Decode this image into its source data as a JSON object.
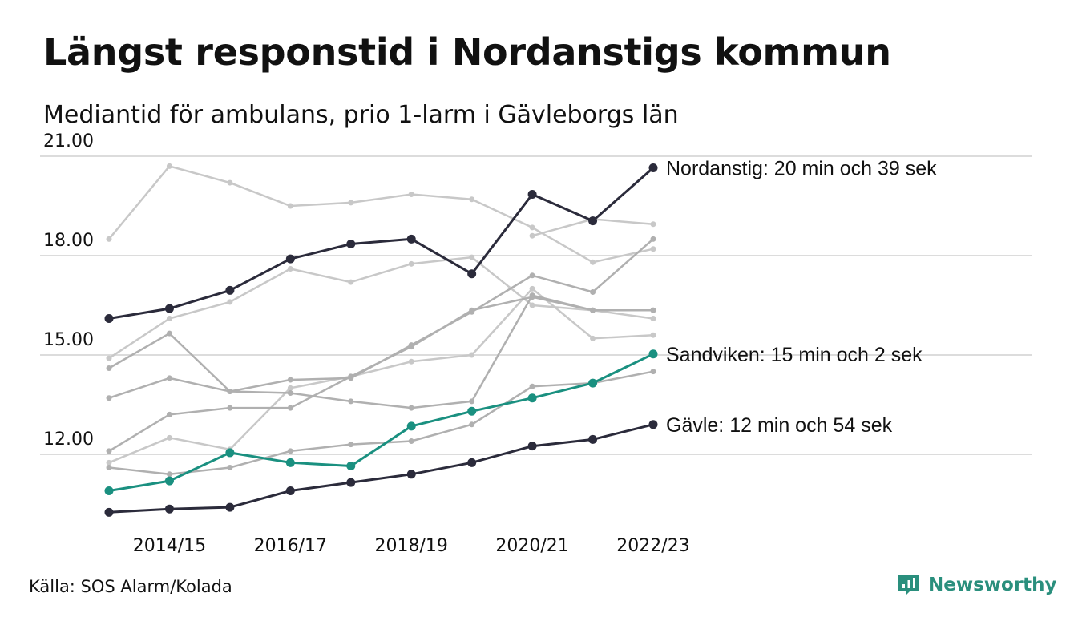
{
  "title": "Längst responstid i Nordanstigs kommun",
  "subtitle": "Mediantid för ambulans, prio 1-larm i Gävleborgs län",
  "source": "Källa: SOS Alarm/Kolada",
  "brand": {
    "name": "Newsworthy",
    "icon": "newsworthy-logo-icon",
    "color": "#2a8f7d"
  },
  "colors": {
    "highlight": "#2b2b3b",
    "accent": "#1a9080",
    "grey_light": "#c8c8c8",
    "grey_mid": "#b0b0b0",
    "grid": "#dcdcdc"
  },
  "chart_data": {
    "type": "line",
    "x": [
      "2013/14",
      "2014/15",
      "2015/16",
      "2016/17",
      "2017/18",
      "2018/19",
      "2019/20",
      "2020/21",
      "2021/22",
      "2022/23"
    ],
    "x_tick_labels": [
      "2014/15",
      "2016/17",
      "2018/19",
      "2020/21",
      "2022/23"
    ],
    "y_ticks": [
      12,
      15,
      18,
      21
    ],
    "y_tick_labels": [
      "12.00",
      "15.00",
      "18.00",
      "21.00"
    ],
    "ylim": [
      10.3,
      21.5
    ],
    "grid": "horizontal",
    "series": [
      {
        "style": "grey_light",
        "values": [
          18.5,
          20.7,
          20.2,
          19.5,
          19.6,
          19.85,
          19.7,
          18.85,
          17.8,
          18.2
        ]
      },
      {
        "style": "grey_light",
        "values": [
          null,
          null,
          null,
          null,
          null,
          null,
          null,
          18.6,
          19.1,
          18.95
        ]
      },
      {
        "style": "grey_light",
        "values": [
          14.9,
          16.1,
          16.6,
          17.6,
          17.2,
          17.75,
          17.95,
          16.5,
          16.35,
          16.1
        ]
      },
      {
        "style": "grey_light",
        "values": [
          11.75,
          12.5,
          12.15,
          14.0,
          14.35,
          14.8,
          15.0,
          17.0,
          15.5,
          15.6
        ]
      },
      {
        "style": "grey_mid",
        "values": [
          14.6,
          15.65,
          13.9,
          13.85,
          13.6,
          13.4,
          13.6,
          16.8,
          16.35,
          16.35
        ]
      },
      {
        "style": "grey_mid",
        "values": [
          13.7,
          14.3,
          13.9,
          14.25,
          14.3,
          15.3,
          16.3,
          17.4,
          16.9,
          18.5
        ]
      },
      {
        "style": "grey_mid",
        "values": [
          12.1,
          13.2,
          13.4,
          13.4,
          14.35,
          15.25,
          16.35,
          16.75,
          16.35,
          16.35
        ]
      },
      {
        "style": "grey_mid",
        "values": [
          11.6,
          11.4,
          11.6,
          12.1,
          12.3,
          12.4,
          12.9,
          14.05,
          14.15,
          14.5
        ]
      },
      {
        "name": "Sandviken",
        "style": "accent",
        "values": [
          10.9,
          11.2,
          12.05,
          11.75,
          11.65,
          12.85,
          13.3,
          13.7,
          14.15,
          15.03
        ]
      },
      {
        "name": "Nordanstig",
        "style": "highlight",
        "values": [
          16.1,
          16.4,
          16.95,
          17.9,
          18.35,
          18.5,
          17.45,
          19.85,
          19.05,
          20.65
        ]
      },
      {
        "name": "Gävle",
        "style": "highlight",
        "values": [
          10.25,
          10.35,
          10.4,
          10.9,
          11.15,
          11.4,
          11.75,
          12.25,
          12.45,
          12.9
        ]
      }
    ],
    "annotations": [
      {
        "series": "Nordanstig",
        "text": "Nordanstig: 20 min och 39 sek"
      },
      {
        "series": "Sandviken",
        "text": "Sandviken: 15 min och 2 sek"
      },
      {
        "series": "Gävle",
        "text": "Gävle: 12 min och 54 sek"
      }
    ]
  }
}
